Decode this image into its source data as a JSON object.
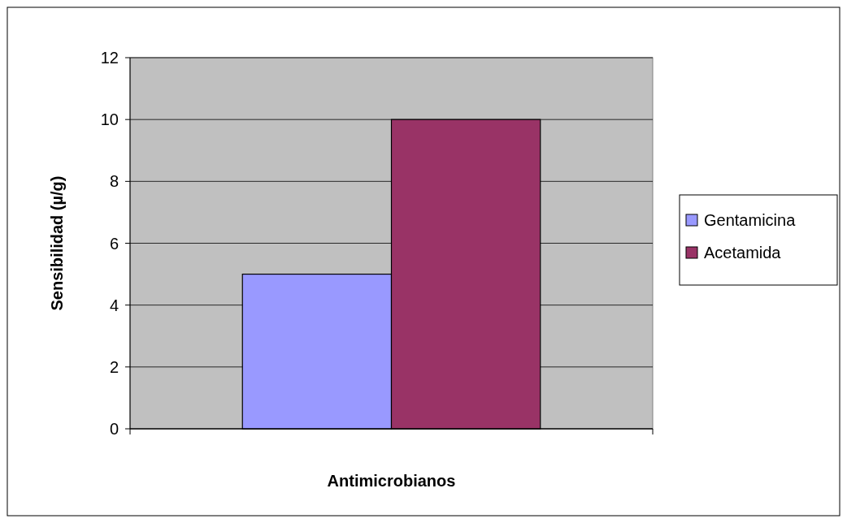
{
  "chart_data": {
    "type": "bar",
    "xlabel": "Antimicrobianos",
    "ylabel": "Sensibilidad (µ/g)",
    "categories": [
      null
    ],
    "series": [
      {
        "name": "Gentamicina",
        "color": "#9999ff",
        "values": [
          5
        ]
      },
      {
        "name": "Acetamida",
        "color": "#993366",
        "values": [
          10
        ]
      }
    ],
    "ylim": [
      0,
      12
    ],
    "yticks": [
      0,
      2,
      4,
      6,
      8,
      10,
      12
    ],
    "grid": "y",
    "legend": "right"
  }
}
